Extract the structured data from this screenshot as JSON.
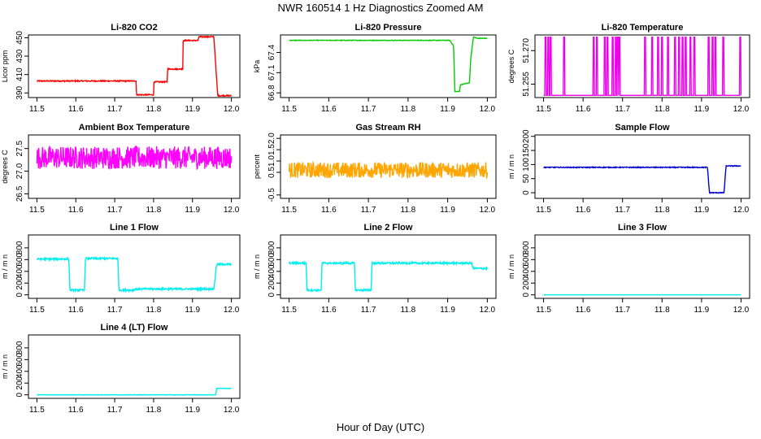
{
  "main_title": "NWR  160514  1 Hz Diagnostics Zoomed AM",
  "x_axis_label": "Hour of Day (UTC)",
  "x_ticks": [
    "11.5",
    "11.6",
    "11.7",
    "11.8",
    "11.9",
    "12.0"
  ],
  "chart_data": [
    {
      "id": "co2",
      "type": "line",
      "title": "Li-820 CO2",
      "ylabel": "Licor ppm",
      "color": "#ff0000",
      "xlim": [
        11.5,
        12.0
      ],
      "ylim": [
        385,
        453
      ],
      "yticks": [
        "390",
        "410",
        "430",
        "450"
      ],
      "series": [
        {
          "name": "Li-820 CO2",
          "x": [
            11.5,
            11.755,
            11.756,
            11.8,
            11.801,
            11.835,
            11.836,
            11.875,
            11.876,
            11.915,
            11.916,
            11.955,
            11.962,
            11.965,
            12.0
          ],
          "y": [
            403,
            403,
            388,
            388,
            402,
            402,
            416,
            416,
            447,
            447,
            451,
            451,
            405,
            387,
            387
          ]
        }
      ],
      "noise": 0.6
    },
    {
      "id": "pressure",
      "type": "line",
      "title": "Li-820 Pressure",
      "ylabel": "kPa",
      "color": "#00cc00",
      "xlim": [
        11.5,
        12.0
      ],
      "ylim": [
        66.73,
        67.66
      ],
      "yticks": [
        "66.8",
        "67.1",
        "67.4"
      ],
      "series": [
        {
          "name": "Li-820 Pressure",
          "x": [
            11.5,
            11.905,
            11.915,
            11.918,
            11.93,
            11.932,
            11.955,
            11.958,
            11.965,
            11.975,
            12.0
          ],
          "y": [
            67.58,
            67.58,
            67.5,
            66.82,
            66.82,
            66.92,
            66.95,
            67.3,
            67.63,
            67.61,
            67.61
          ]
        }
      ],
      "noise": 0.004
    },
    {
      "id": "temp",
      "type": "line",
      "title": "Li-820 Temperature",
      "ylabel": "degrees C",
      "color": "#ee00ee",
      "xlim": [
        11.5,
        12.0
      ],
      "ylim": [
        51.249,
        51.277
      ],
      "yticks": [
        "51.255",
        "51.270"
      ],
      "series": [
        {
          "name": "Li-820 Temperature",
          "baseline": 51.25,
          "high": 51.276,
          "spike_x": [
            11.505,
            11.512,
            11.518,
            11.552,
            11.627,
            11.635,
            11.655,
            11.662,
            11.675,
            11.683,
            11.688,
            11.692,
            11.757,
            11.775,
            11.79,
            11.8,
            11.815,
            11.833,
            11.843,
            11.852,
            11.86,
            11.872,
            11.882,
            11.918,
            11.928,
            11.935,
            11.955,
            11.998
          ]
        }
      ],
      "noise": 0
    },
    {
      "id": "ambient",
      "type": "line",
      "title": "Ambient Box Temperature",
      "ylabel": "degrees C",
      "color": "#ff00ff",
      "xlim": [
        11.5,
        12.0
      ],
      "ylim": [
        26.4,
        27.8
      ],
      "yticks": [
        "26.5",
        "27.0",
        "27.5"
      ],
      "series": [
        {
          "name": "Ambient Box Temperature",
          "x": [
            11.5,
            12.0
          ],
          "y": [
            27.3,
            27.3
          ]
        }
      ],
      "noise": 0.25
    },
    {
      "id": "rh",
      "type": "line",
      "title": "Gas Stream RH",
      "ylabel": "percent",
      "color": "#ffa500",
      "xlim": [
        11.5,
        12.0
      ],
      "ylim": [
        -0.65,
        2.15
      ],
      "yticks": [
        "-0.5",
        "0.5",
        "1.0",
        "1.5",
        "2.0"
      ],
      "series": [
        {
          "name": "Gas Stream RH",
          "x": [
            11.5,
            12.0
          ],
          "y": [
            0.6,
            0.6
          ]
        }
      ],
      "noise": 0.35
    },
    {
      "id": "sample",
      "type": "line",
      "title": "Sample Flow",
      "ylabel": "m / m n",
      "color": "#0000cc",
      "xlim": [
        11.5,
        12.0
      ],
      "ylim": [
        -20,
        205
      ],
      "yticks": [
        "0",
        "50",
        "100",
        "150",
        "200"
      ],
      "series": [
        {
          "name": "Sample Flow",
          "x": [
            11.5,
            11.915,
            11.92,
            11.957,
            11.962,
            12.0
          ],
          "y": [
            90,
            90,
            0,
            0,
            95,
            95
          ]
        }
      ],
      "noise": 1.5
    },
    {
      "id": "line1",
      "type": "line",
      "title": "Line 1 Flow",
      "ylabel": "m / m n",
      "color": "#00eeee",
      "xlim": [
        11.5,
        12.0
      ],
      "ylim": [
        -60,
        1020
      ],
      "yticks": [
        "0",
        "200",
        "400",
        "600",
        "800"
      ],
      "series": [
        {
          "name": "Line 1 Flow",
          "x": [
            11.5,
            11.582,
            11.585,
            11.622,
            11.625,
            11.708,
            11.711,
            11.75,
            11.752,
            11.955,
            11.962,
            12.0
          ],
          "y": [
            610,
            610,
            80,
            80,
            620,
            620,
            80,
            80,
            100,
            100,
            520,
            520
          ]
        }
      ],
      "noise": 15
    },
    {
      "id": "line2",
      "type": "line",
      "title": "Line 2 Flow",
      "ylabel": "m / m n",
      "color": "#00eeee",
      "xlim": [
        11.5,
        12.0
      ],
      "ylim": [
        -60,
        1020
      ],
      "yticks": [
        "0",
        "200",
        "400",
        "600",
        "800"
      ],
      "series": [
        {
          "name": "Line 2 Flow",
          "x": [
            11.5,
            11.543,
            11.545,
            11.581,
            11.583,
            11.665,
            11.667,
            11.707,
            11.709,
            11.96,
            11.965,
            12.0
          ],
          "y": [
            540,
            540,
            80,
            80,
            540,
            540,
            80,
            80,
            540,
            540,
            450,
            450
          ]
        }
      ],
      "noise": 15
    },
    {
      "id": "line3",
      "type": "line",
      "title": "Line 3 Flow",
      "ylabel": "m / m n",
      "color": "#00eeee",
      "xlim": [
        11.5,
        12.0
      ],
      "ylim": [
        -60,
        1020
      ],
      "yticks": [
        "0",
        "200",
        "400",
        "600",
        "800"
      ],
      "series": [
        {
          "name": "Line 3 Flow",
          "x": [
            11.5,
            12.0
          ],
          "y": [
            0,
            0
          ]
        }
      ],
      "noise": 0
    },
    {
      "id": "line4",
      "type": "line",
      "title": "Line 4 (LT) Flow",
      "ylabel": "m / m n",
      "color": "#00eeee",
      "xlim": [
        11.5,
        12.0
      ],
      "ylim": [
        -60,
        1020
      ],
      "yticks": [
        "0",
        "200",
        "400",
        "600",
        "800"
      ],
      "series": [
        {
          "name": "Line 4 (LT) Flow",
          "x": [
            11.5,
            11.96,
            11.962,
            12.0
          ],
          "y": [
            0,
            0,
            110,
            110
          ]
        }
      ],
      "noise": 3
    }
  ]
}
